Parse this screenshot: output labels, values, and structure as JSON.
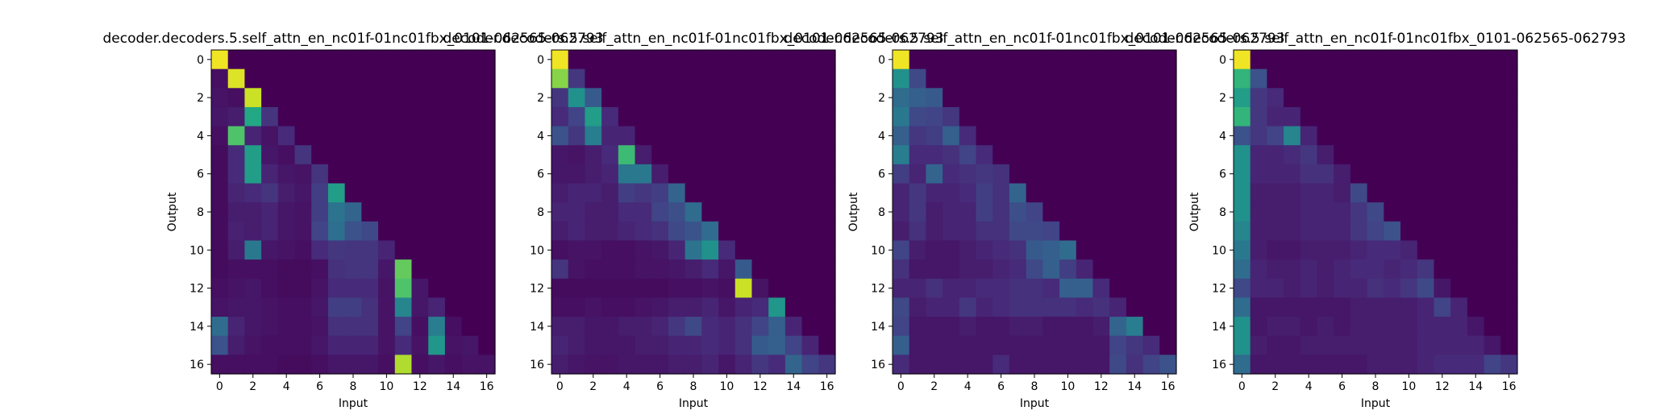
{
  "chart_data": [
    {
      "type": "heatmap",
      "title": "decoder.decoders.5.self_attn_en_nc01f-01nc01fbx_0101-062565-062793",
      "xlabel": "Input",
      "ylabel": "Output",
      "x_ticks": [
        0,
        2,
        4,
        6,
        8,
        10,
        12,
        14,
        16
      ],
      "y_ticks": [
        0,
        2,
        4,
        6,
        8,
        10,
        12,
        14,
        16
      ],
      "size": 17,
      "colormap": "viridis",
      "vrange": [
        0,
        1
      ],
      "rows": [
        [
          0.98
        ],
        [
          0.04,
          0.95
        ],
        [
          0.05,
          0.04,
          0.92
        ],
        [
          0.06,
          0.08,
          0.6,
          0.15
        ],
        [
          0.04,
          0.72,
          0.1,
          0.05,
          0.12
        ],
        [
          0.03,
          0.12,
          0.55,
          0.06,
          0.04,
          0.15
        ],
        [
          0.03,
          0.12,
          0.55,
          0.1,
          0.06,
          0.05,
          0.15
        ],
        [
          0.03,
          0.1,
          0.12,
          0.15,
          0.08,
          0.06,
          0.18,
          0.55
        ],
        [
          0.03,
          0.08,
          0.08,
          0.1,
          0.06,
          0.05,
          0.18,
          0.38,
          0.32
        ],
        [
          0.03,
          0.09,
          0.08,
          0.1,
          0.06,
          0.05,
          0.2,
          0.36,
          0.25,
          0.22
        ],
        [
          0.03,
          0.08,
          0.4,
          0.06,
          0.05,
          0.04,
          0.12,
          0.16,
          0.15,
          0.15,
          0.1
        ],
        [
          0.03,
          0.04,
          0.04,
          0.04,
          0.03,
          0.03,
          0.04,
          0.14,
          0.15,
          0.15,
          0.06,
          0.76
        ],
        [
          0.04,
          0.05,
          0.06,
          0.04,
          0.03,
          0.03,
          0.05,
          0.12,
          0.12,
          0.12,
          0.05,
          0.72,
          0.06
        ],
        [
          0.05,
          0.06,
          0.06,
          0.05,
          0.04,
          0.04,
          0.06,
          0.18,
          0.18,
          0.14,
          0.05,
          0.45,
          0.06,
          0.1
        ],
        [
          0.35,
          0.1,
          0.06,
          0.05,
          0.04,
          0.04,
          0.05,
          0.14,
          0.14,
          0.14,
          0.05,
          0.2,
          0.04,
          0.42,
          0.04
        ],
        [
          0.25,
          0.08,
          0.05,
          0.04,
          0.04,
          0.04,
          0.06,
          0.1,
          0.1,
          0.1,
          0.05,
          0.12,
          0.05,
          0.52,
          0.05,
          0.06
        ],
        [
          0.04,
          0.04,
          0.04,
          0.04,
          0.03,
          0.03,
          0.04,
          0.06,
          0.06,
          0.06,
          0.04,
          0.88,
          0.04,
          0.06,
          0.04,
          0.05,
          0.05
        ]
      ]
    },
    {
      "type": "heatmap",
      "title": "decoder.decoders.5.self_attn_en_nc01f-01nc01fbx_0101-062565-062793",
      "xlabel": "Input",
      "ylabel": "",
      "x_ticks": [
        0,
        2,
        4,
        6,
        8,
        10,
        12,
        14,
        16
      ],
      "y_ticks": [
        0,
        2,
        4,
        6,
        8,
        10,
        12,
        14,
        16
      ],
      "size": 17,
      "colormap": "viridis",
      "vrange": [
        0,
        1
      ],
      "rows": [
        [
          0.98
        ],
        [
          0.82,
          0.16
        ],
        [
          0.15,
          0.5,
          0.28
        ],
        [
          0.12,
          0.2,
          0.55,
          0.12
        ],
        [
          0.25,
          0.16,
          0.42,
          0.1,
          0.1
        ],
        [
          0.06,
          0.05,
          0.08,
          0.12,
          0.68,
          0.08
        ],
        [
          0.06,
          0.06,
          0.08,
          0.1,
          0.4,
          0.4,
          0.08
        ],
        [
          0.08,
          0.1,
          0.1,
          0.08,
          0.18,
          0.16,
          0.18,
          0.32
        ],
        [
          0.1,
          0.1,
          0.08,
          0.08,
          0.12,
          0.12,
          0.2,
          0.24,
          0.35
        ],
        [
          0.08,
          0.1,
          0.08,
          0.08,
          0.1,
          0.12,
          0.14,
          0.22,
          0.26,
          0.35
        ],
        [
          0.04,
          0.05,
          0.05,
          0.04,
          0.04,
          0.05,
          0.06,
          0.1,
          0.38,
          0.5,
          0.12
        ],
        [
          0.15,
          0.05,
          0.04,
          0.04,
          0.04,
          0.05,
          0.05,
          0.06,
          0.08,
          0.12,
          0.06,
          0.28
        ],
        [
          0.03,
          0.03,
          0.03,
          0.03,
          0.03,
          0.03,
          0.03,
          0.04,
          0.04,
          0.05,
          0.04,
          0.92,
          0.05
        ],
        [
          0.04,
          0.04,
          0.05,
          0.04,
          0.04,
          0.05,
          0.06,
          0.08,
          0.08,
          0.1,
          0.06,
          0.1,
          0.12,
          0.52
        ],
        [
          0.08,
          0.08,
          0.06,
          0.06,
          0.08,
          0.08,
          0.1,
          0.16,
          0.22,
          0.12,
          0.1,
          0.14,
          0.2,
          0.3,
          0.1
        ],
        [
          0.1,
          0.08,
          0.06,
          0.06,
          0.06,
          0.08,
          0.08,
          0.1,
          0.1,
          0.12,
          0.1,
          0.14,
          0.28,
          0.3,
          0.2,
          0.1
        ],
        [
          0.08,
          0.06,
          0.05,
          0.05,
          0.06,
          0.06,
          0.06,
          0.08,
          0.08,
          0.1,
          0.06,
          0.1,
          0.16,
          0.12,
          0.32,
          0.2,
          0.16
        ]
      ]
    },
    {
      "type": "heatmap",
      "title": "decoder.decoders.5.self_attn_en_nc01f-01nc01fbx_0101-062565-062793",
      "xlabel": "Input",
      "ylabel": "Output",
      "x_ticks": [
        0,
        2,
        4,
        6,
        8,
        10,
        12,
        14,
        16
      ],
      "y_ticks": [
        0,
        2,
        4,
        6,
        8,
        10,
        12,
        14,
        16
      ],
      "size": 17,
      "colormap": "viridis",
      "vrange": [
        0,
        1
      ],
      "rows": [
        [
          0.98
        ],
        [
          0.5,
          0.22
        ],
        [
          0.35,
          0.3,
          0.28
        ],
        [
          0.4,
          0.22,
          0.2,
          0.16
        ],
        [
          0.3,
          0.16,
          0.18,
          0.3,
          0.12
        ],
        [
          0.42,
          0.12,
          0.12,
          0.14,
          0.2,
          0.12
        ],
        [
          0.18,
          0.1,
          0.32,
          0.12,
          0.14,
          0.16,
          0.14
        ],
        [
          0.1,
          0.16,
          0.1,
          0.1,
          0.12,
          0.18,
          0.14,
          0.32
        ],
        [
          0.1,
          0.16,
          0.08,
          0.1,
          0.1,
          0.18,
          0.14,
          0.24,
          0.2
        ],
        [
          0.08,
          0.14,
          0.08,
          0.1,
          0.1,
          0.14,
          0.14,
          0.22,
          0.22,
          0.2
        ],
        [
          0.2,
          0.08,
          0.06,
          0.06,
          0.08,
          0.1,
          0.12,
          0.14,
          0.28,
          0.3,
          0.35
        ],
        [
          0.14,
          0.06,
          0.06,
          0.06,
          0.08,
          0.08,
          0.1,
          0.12,
          0.22,
          0.3,
          0.18,
          0.1
        ],
        [
          0.1,
          0.1,
          0.14,
          0.1,
          0.1,
          0.12,
          0.12,
          0.14,
          0.14,
          0.12,
          0.3,
          0.3,
          0.12
        ],
        [
          0.22,
          0.08,
          0.1,
          0.1,
          0.16,
          0.1,
          0.12,
          0.14,
          0.14,
          0.14,
          0.14,
          0.12,
          0.14,
          0.1
        ],
        [
          0.2,
          0.06,
          0.06,
          0.06,
          0.08,
          0.06,
          0.06,
          0.08,
          0.08,
          0.06,
          0.06,
          0.06,
          0.08,
          0.32,
          0.42
        ],
        [
          0.3,
          0.06,
          0.06,
          0.06,
          0.06,
          0.06,
          0.06,
          0.06,
          0.06,
          0.06,
          0.06,
          0.06,
          0.06,
          0.2,
          0.16,
          0.12
        ],
        [
          0.12,
          0.06,
          0.06,
          0.06,
          0.06,
          0.06,
          0.12,
          0.06,
          0.06,
          0.06,
          0.06,
          0.06,
          0.06,
          0.22,
          0.14,
          0.2,
          0.25
        ]
      ]
    },
    {
      "type": "heatmap",
      "title": "decoder.decoders.5.self_attn_en_nc01f-01nc01fbx_0101-062565-062793",
      "xlabel": "Input",
      "ylabel": "Output",
      "x_ticks": [
        0,
        2,
        4,
        6,
        8,
        10,
        12,
        14,
        16
      ],
      "y_ticks": [
        0,
        2,
        4,
        6,
        8,
        10,
        12,
        14,
        16
      ],
      "size": 17,
      "colormap": "viridis",
      "vrange": [
        0,
        1
      ],
      "rows": [
        [
          0.98
        ],
        [
          0.65,
          0.25
        ],
        [
          0.55,
          0.16,
          0.12
        ],
        [
          0.65,
          0.16,
          0.1,
          0.1
        ],
        [
          0.25,
          0.16,
          0.2,
          0.45,
          0.1
        ],
        [
          0.5,
          0.1,
          0.1,
          0.12,
          0.16,
          0.08
        ],
        [
          0.5,
          0.1,
          0.1,
          0.1,
          0.14,
          0.14,
          0.08
        ],
        [
          0.5,
          0.08,
          0.08,
          0.08,
          0.1,
          0.1,
          0.08,
          0.22
        ],
        [
          0.5,
          0.08,
          0.08,
          0.08,
          0.1,
          0.1,
          0.1,
          0.16,
          0.22
        ],
        [
          0.45,
          0.08,
          0.08,
          0.08,
          0.1,
          0.1,
          0.1,
          0.16,
          0.2,
          0.25
        ],
        [
          0.4,
          0.08,
          0.06,
          0.06,
          0.08,
          0.08,
          0.08,
          0.1,
          0.12,
          0.12,
          0.1
        ],
        [
          0.35,
          0.1,
          0.08,
          0.08,
          0.1,
          0.08,
          0.1,
          0.12,
          0.12,
          0.1,
          0.12,
          0.16
        ],
        [
          0.22,
          0.1,
          0.1,
          0.08,
          0.1,
          0.08,
          0.1,
          0.1,
          0.14,
          0.12,
          0.16,
          0.22,
          0.06
        ],
        [
          0.35,
          0.06,
          0.06,
          0.06,
          0.06,
          0.06,
          0.06,
          0.08,
          0.08,
          0.08,
          0.08,
          0.1,
          0.2,
          0.1
        ],
        [
          0.5,
          0.06,
          0.08,
          0.08,
          0.06,
          0.08,
          0.06,
          0.08,
          0.08,
          0.08,
          0.08,
          0.1,
          0.1,
          0.1,
          0.06
        ],
        [
          0.5,
          0.08,
          0.06,
          0.06,
          0.08,
          0.08,
          0.08,
          0.08,
          0.08,
          0.08,
          0.08,
          0.1,
          0.1,
          0.1,
          0.1,
          0.06
        ],
        [
          0.35,
          0.06,
          0.06,
          0.06,
          0.06,
          0.06,
          0.06,
          0.06,
          0.08,
          0.08,
          0.08,
          0.1,
          0.12,
          0.12,
          0.12,
          0.2,
          0.16
        ]
      ]
    }
  ]
}
